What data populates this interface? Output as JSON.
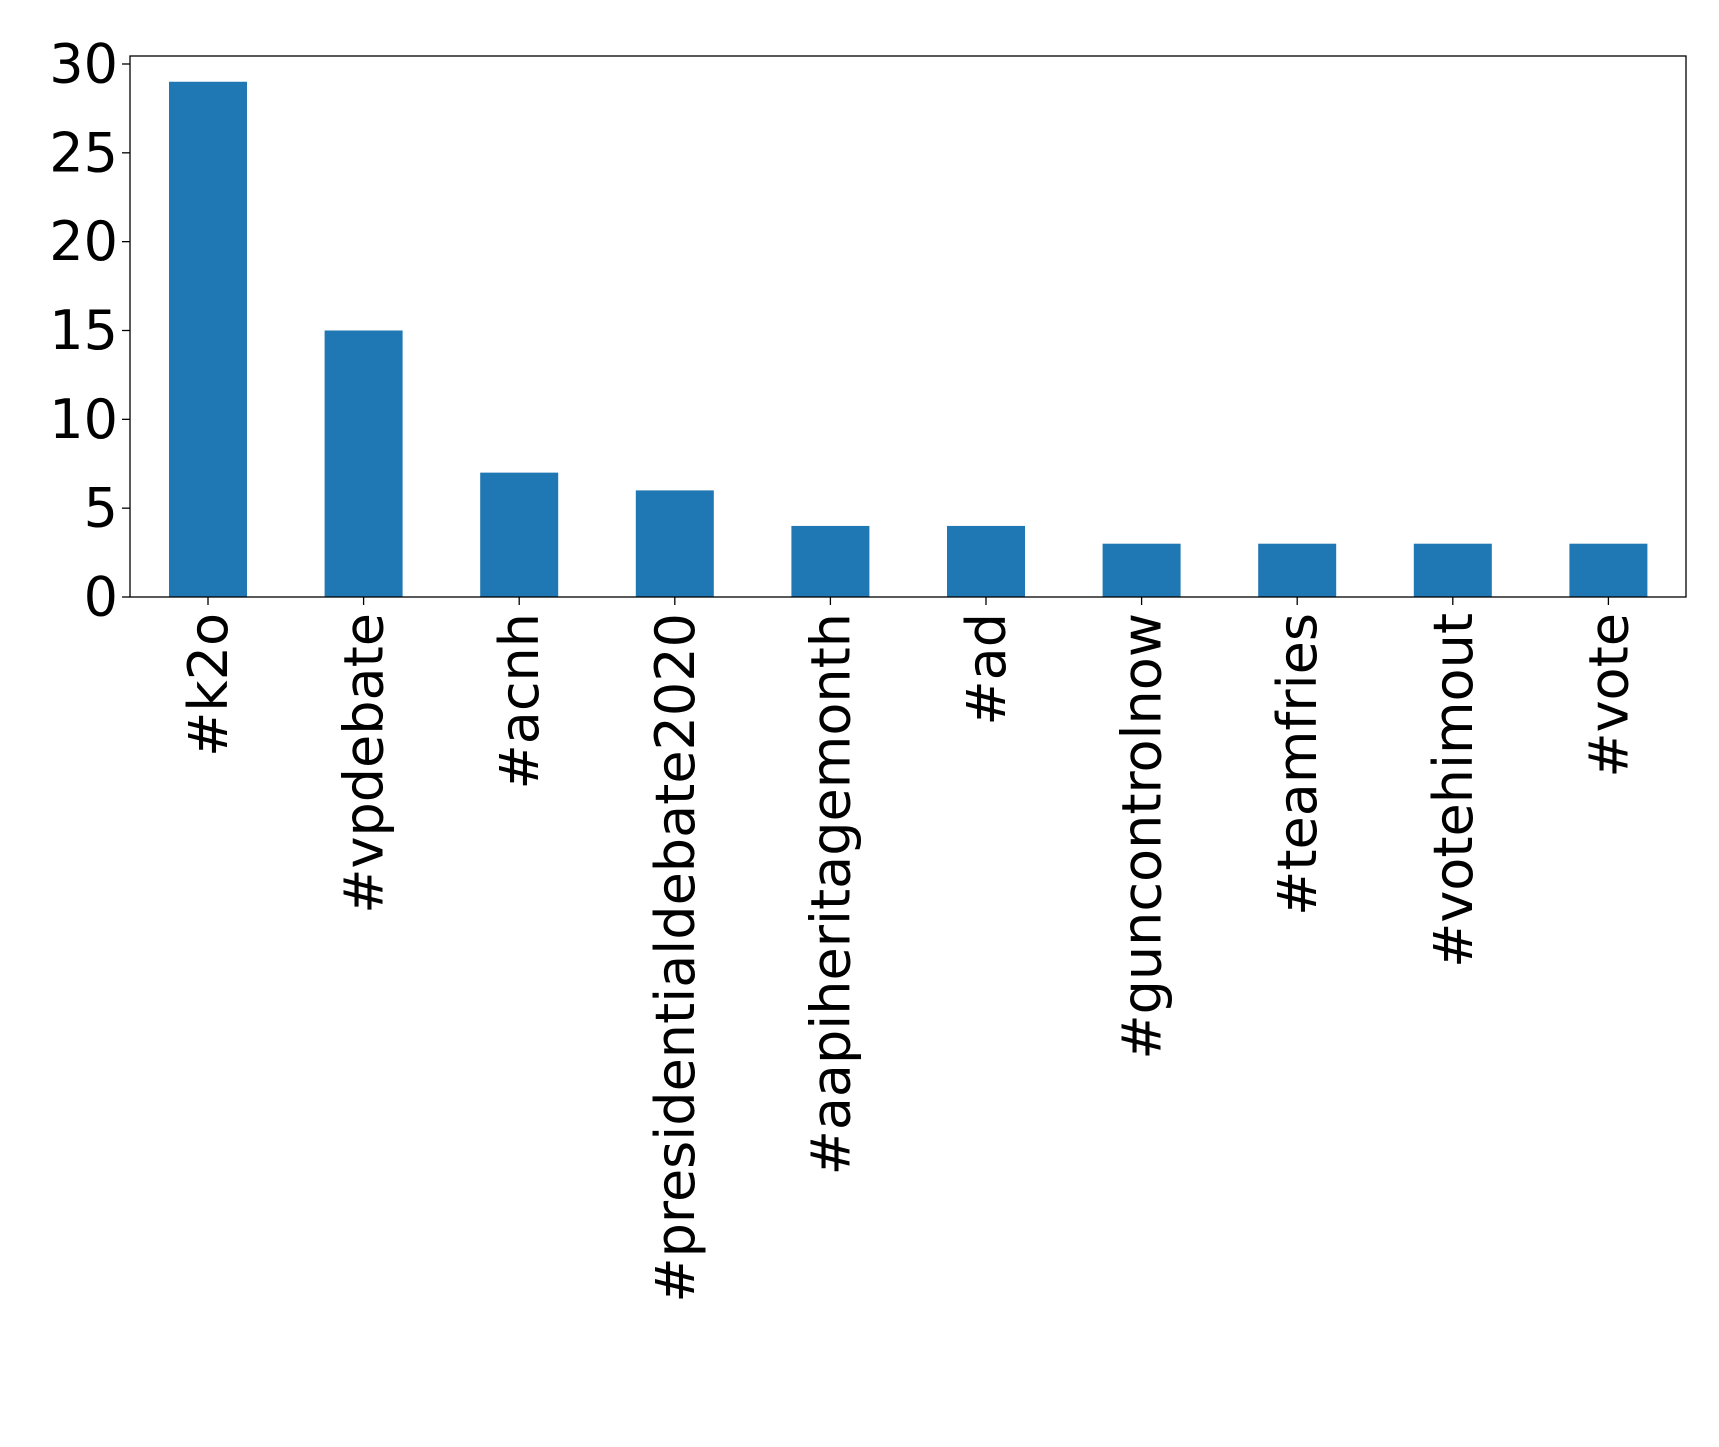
{
  "chart_data": {
    "type": "bar",
    "categories": [
      "#k2o",
      "#vpdebate",
      "#acnh",
      "#presidentialdebate2020",
      "#aapiheritagemonth",
      "#ad",
      "#guncontrolnow",
      "#teamfries",
      "#votehimout",
      "#vote"
    ],
    "values": [
      29,
      15,
      7,
      6,
      4,
      4,
      3,
      3,
      3,
      3
    ],
    "yticks": [
      0,
      5,
      10,
      15,
      20,
      25,
      30
    ],
    "ylim": [
      0,
      30.45
    ],
    "bar_color": "#1f77b4",
    "title": "",
    "xlabel": "",
    "ylabel": "",
    "grid": false,
    "legend": "none"
  }
}
